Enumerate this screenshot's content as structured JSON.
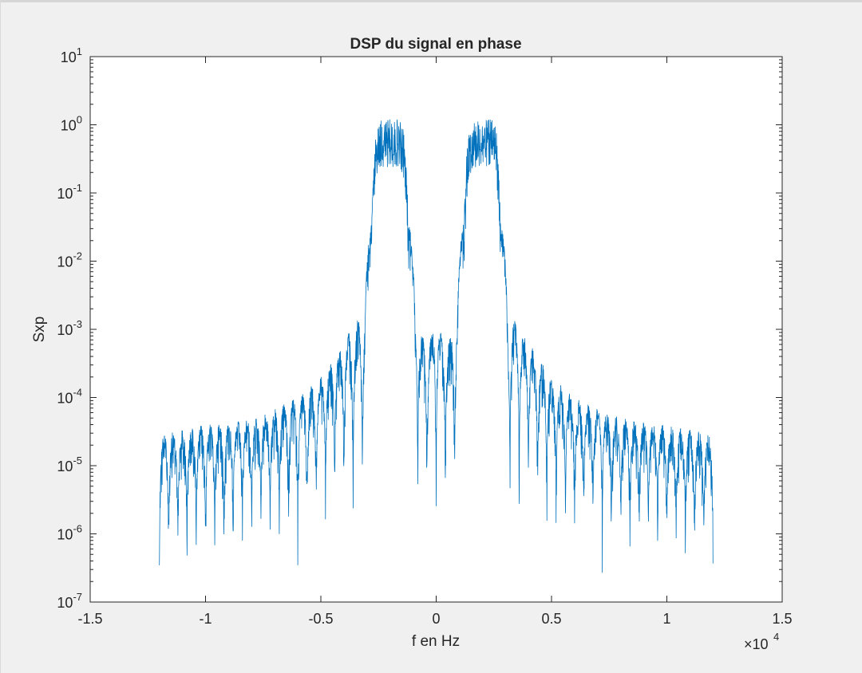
{
  "window": {
    "background": "#f0f0f0"
  },
  "chart_data": {
    "type": "line",
    "title": "DSP du signal en phase",
    "xlabel": "f en Hz",
    "ylabel": "Sxp",
    "x_exponent_base": "×10",
    "x_exponent_power": "4",
    "x_scale": 10000,
    "xlim": [
      -15000,
      15000
    ],
    "ylim": [
      1e-07,
      10
    ],
    "y_scale": "log",
    "grid": false,
    "line_color": "#0072bd",
    "x_ticks": [
      {
        "value": -15000,
        "label": "-1.5"
      },
      {
        "value": -10000,
        "label": "-1"
      },
      {
        "value": -5000,
        "label": "-0.5"
      },
      {
        "value": 0,
        "label": "0"
      },
      {
        "value": 5000,
        "label": "0.5"
      },
      {
        "value": 10000,
        "label": "1"
      },
      {
        "value": 15000,
        "label": "1.5"
      }
    ],
    "y_ticks": [
      {
        "value": 10,
        "base": "10",
        "exp": "1"
      },
      {
        "value": 1,
        "base": "10",
        "exp": "0"
      },
      {
        "value": 0.1,
        "base": "10",
        "exp": "-1"
      },
      {
        "value": 0.01,
        "base": "10",
        "exp": "-2"
      },
      {
        "value": 0.001,
        "base": "10",
        "exp": "-3"
      },
      {
        "value": 0.0001,
        "base": "10",
        "exp": "-4"
      },
      {
        "value": 1e-05,
        "base": "10",
        "exp": "-5"
      },
      {
        "value": 1e-06,
        "base": "10",
        "exp": "-6"
      },
      {
        "value": 1e-07,
        "base": "10",
        "exp": "-7"
      }
    ],
    "series": [
      {
        "x_range": [
          -12000,
          12000
        ],
        "envelope": [
          {
            "f": 0,
            "peak": 0.002,
            "floor": 4e-06
          },
          {
            "f": 200,
            "peak": 0.0009,
            "floor": 3e-06
          },
          {
            "f": 600,
            "peak": 0.0008,
            "floor": 3e-06
          },
          {
            "f": 900,
            "peak": 0.002,
            "floor": 4e-06
          },
          {
            "f": 1000,
            "peak": 0.01,
            "floor": 0.0005
          },
          {
            "f": 1200,
            "peak": 0.1,
            "floor": 0.02
          },
          {
            "f": 1400,
            "peak": 0.8,
            "floor": 0.12
          },
          {
            "f": 1600,
            "peak": 1.2,
            "floor": 0.25
          },
          {
            "f": 2400,
            "peak": 1.2,
            "floor": 0.25
          },
          {
            "f": 2600,
            "peak": 0.9,
            "floor": 0.12
          },
          {
            "f": 2800,
            "peak": 0.1,
            "floor": 0.02
          },
          {
            "f": 3000,
            "peak": 0.01,
            "floor": 0.0005
          },
          {
            "f": 3100,
            "peak": 0.002,
            "floor": 3e-06
          },
          {
            "f": 4000,
            "peak": 0.0007,
            "floor": 3e-06
          },
          {
            "f": 5000,
            "peak": 0.0002,
            "floor": 2e-06
          },
          {
            "f": 6000,
            "peak": 0.0001,
            "floor": 1.5e-06
          },
          {
            "f": 8000,
            "peak": 5e-05,
            "floor": 1e-06
          },
          {
            "f": 10000,
            "peak": 4e-05,
            "floor": 8e-07
          },
          {
            "f": 12000,
            "peak": 3e-05,
            "floor": 5e-07
          }
        ],
        "lobe_spacing": 400
      }
    ]
  }
}
